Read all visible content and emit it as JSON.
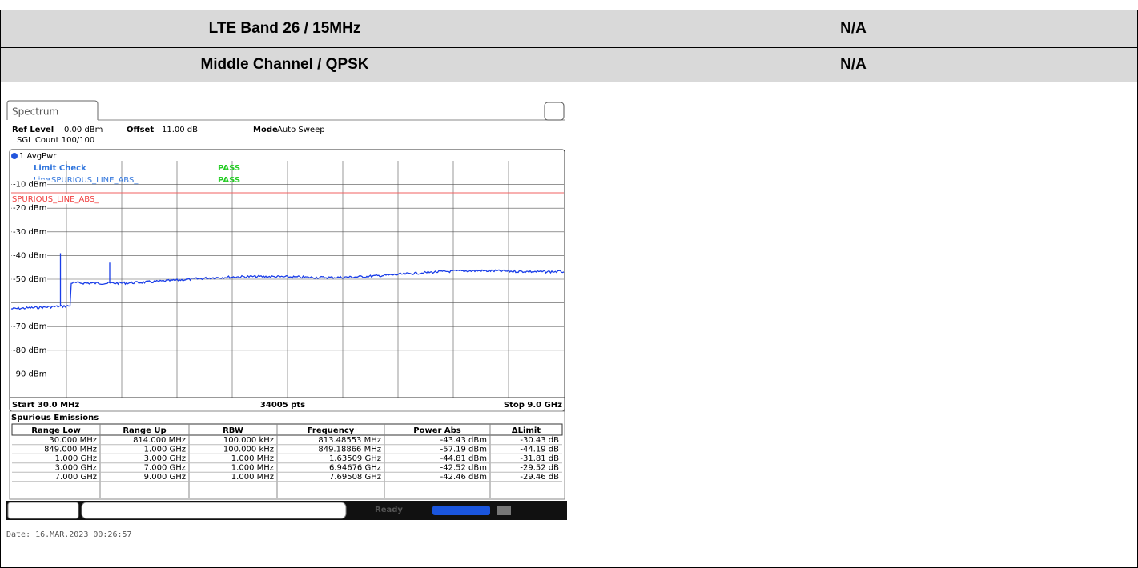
{
  "table": {
    "rows": [
      [
        "LTE Band 26 / 15MHz",
        "N/A"
      ],
      [
        "Middle Channel / QPSK",
        "N/A"
      ]
    ]
  },
  "spectrum": {
    "tab": "Spectrum",
    "ref_level_label": "Ref Level",
    "ref_level": "0.00 dBm",
    "offset_label": "Offset",
    "offset": "11.00 dB",
    "mode_label": "Mode",
    "mode": "Auto Sweep",
    "sgl_count": "SGL Count 100/100",
    "trace": "1 AvgPwr",
    "limit_check": "Limit Check",
    "limit_check_result": "PASS",
    "line_label": "Line",
    "line_name": "SPURIOUS_LINE_ABS_",
    "line_result": "PASS",
    "limit_line_label": "SPURIOUS_LINE_ABS_",
    "y_labels": [
      "-10 dBm",
      "-20 dBm",
      "-30 dBm",
      "-40 dBm",
      "-50 dBm",
      "-70 dBm",
      "-80 dBm",
      "-90 dBm"
    ],
    "start": "Start 30.0 MHz",
    "points": "34005 pts",
    "stop": "Stop 9.0 GHz",
    "table_title": "Spurious Emissions",
    "columns": [
      "Range Low",
      "Range Up",
      "RBW",
      "Frequency",
      "Power Abs",
      "ΔLimit"
    ],
    "rows": [
      [
        "30.000 MHz",
        "814.000 MHz",
        "100.000 kHz",
        "813.48553 MHz",
        "-43.43 dBm",
        "-30.43 dB"
      ],
      [
        "849.000 MHz",
        "1.000 GHz",
        "100.000 kHz",
        "849.18866 MHz",
        "-57.19 dBm",
        "-44.19 dB"
      ],
      [
        "1.000 GHz",
        "3.000 GHz",
        "1.000 MHz",
        "1.63509 GHz",
        "-44.81 dBm",
        "-31.81 dB"
      ],
      [
        "3.000 GHz",
        "7.000 GHz",
        "1.000 MHz",
        "6.94676 GHz",
        "-42.52 dBm",
        "-29.52 dB"
      ],
      [
        "7.000 GHz",
        "9.000 GHz",
        "1.000 MHz",
        "7.69508 GHz",
        "-42.46 dBm",
        "-29.46 dB"
      ]
    ],
    "status": "Ready",
    "date": "Date: 16.MAR.2023  00:26:57"
  }
}
